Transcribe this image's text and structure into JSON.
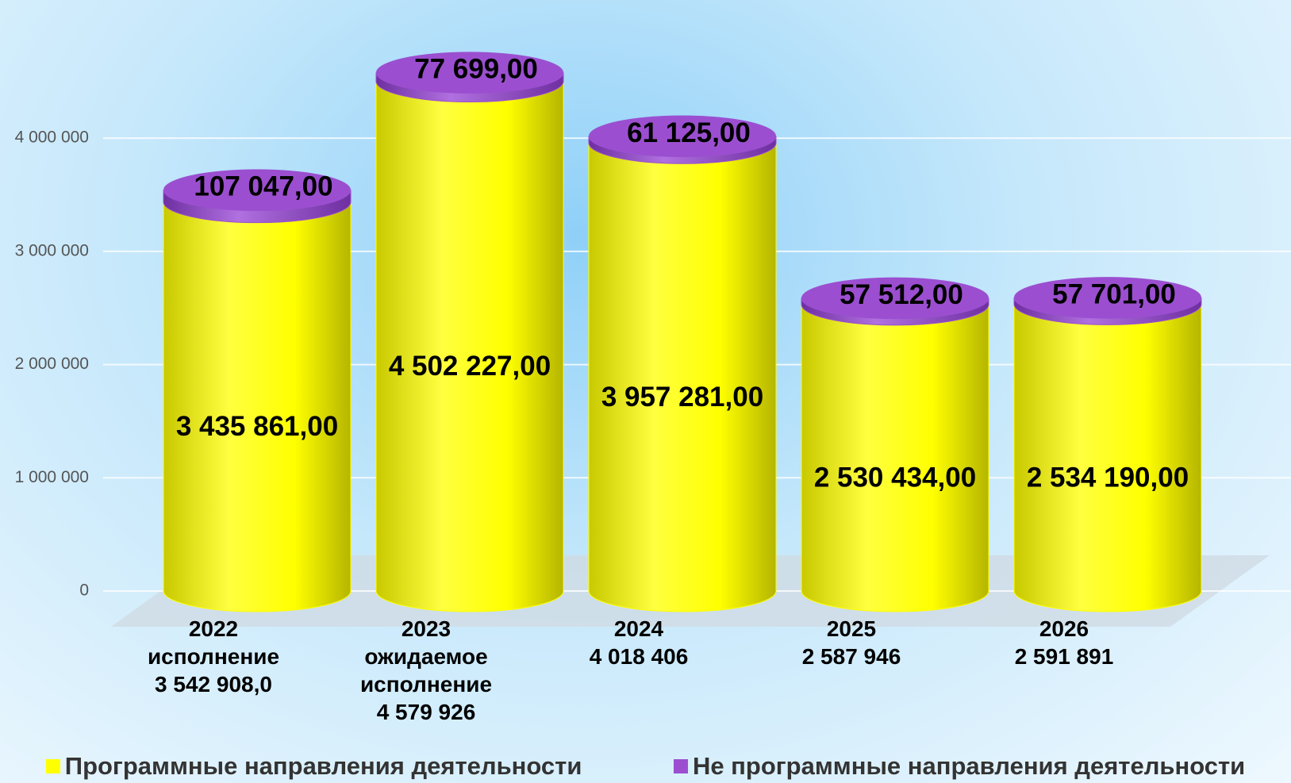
{
  "chart_data": {
    "type": "cylinder_stacked_bar",
    "categories": [
      "2022\nисполнение\n3 542 908,0",
      "2023\nожидаемое\nисполнение\n4 579 926",
      "2024\n4 018 406",
      "2025\n2 587 946",
      "2026\n2 591 891"
    ],
    "series": [
      {
        "name": "Программные направления деятельности",
        "color": "#ffff00",
        "values": [
          3435861,
          4502227,
          3957281,
          2530434,
          2534190
        ],
        "value_labels": [
          "3 435 861,00",
          "4 502 227,00",
          "3 957 281,00",
          "2 530 434,00",
          "2 534 190,00"
        ]
      },
      {
        "name": "Не программные направления деятельности",
        "color": "#9b4fd0",
        "values": [
          107047,
          77699,
          61125,
          57512,
          57701
        ],
        "value_labels": [
          "107 047,00",
          "77 699,00",
          "61 125,00",
          "57 512,00",
          "57 701,00"
        ]
      }
    ],
    "ylim": [
      0,
      4800000
    ],
    "yticks": [
      0,
      {
        "value": 1000000,
        "label": "1 000 000"
      },
      {
        "value": 2000000,
        "label": "2 000 000"
      },
      {
        "value": 3000000,
        "label": "3 000 000"
      },
      {
        "value": 4000000,
        "label": "4 000 000"
      }
    ],
    "grid": true,
    "legend": "bottom",
    "stacked": true
  }
}
